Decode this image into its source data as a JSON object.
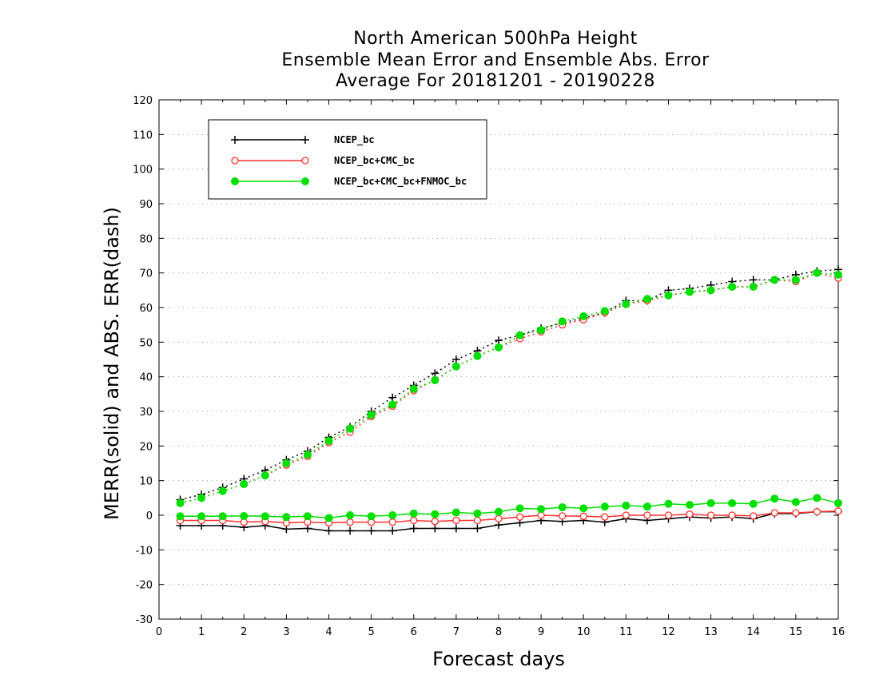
{
  "chart_data": {
    "type": "line",
    "title": [
      "North American 500hPa Height",
      "Ensemble Mean Error and Ensemble Abs. Error",
      "Average For 20181201 - 20190228"
    ],
    "xlabel": "Forecast days",
    "ylabel": "MERR(solid) and ABS. ERR(dash)",
    "xlim": [
      0,
      16
    ],
    "ylim": [
      -30,
      120
    ],
    "xticks": [
      0,
      1,
      2,
      3,
      4,
      5,
      6,
      7,
      8,
      9,
      10,
      11,
      12,
      13,
      14,
      15,
      16
    ],
    "yticks": [
      -30,
      -20,
      -10,
      0,
      10,
      20,
      30,
      40,
      50,
      60,
      70,
      80,
      90,
      100,
      110,
      120
    ],
    "grid": "horizontal dotted",
    "legend_position": "top-left",
    "x": [
      0.5,
      1,
      1.5,
      2,
      2.5,
      3,
      3.5,
      4,
      4.5,
      5,
      5.5,
      6,
      6.5,
      7,
      7.5,
      8,
      8.5,
      9,
      9.5,
      10,
      10.5,
      11,
      11.5,
      12,
      12.5,
      13,
      13.5,
      14,
      14.5,
      15,
      15.5,
      16
    ],
    "series": [
      {
        "name": "NCEP_bc",
        "color": "#000000",
        "marker": "plus",
        "mean_error": [
          -3,
          -3,
          -3,
          -3.5,
          -3,
          -4,
          -3.8,
          -4.5,
          -4.5,
          -4.5,
          -4.5,
          -3.8,
          -3.8,
          -3.8,
          -3.8,
          -2.8,
          -2.2,
          -1.5,
          -1.8,
          -1.5,
          -2,
          -1,
          -1.5,
          -1,
          -0.5,
          -0.8,
          -0.5,
          -1,
          0.5,
          0.5,
          1,
          1
        ],
        "abs_error": [
          4.5,
          6,
          8,
          10.5,
          13,
          16,
          18.5,
          22.5,
          25.5,
          30,
          34,
          37.5,
          41,
          45,
          47.5,
          50.5,
          52,
          54,
          55.5,
          57,
          58.5,
          62,
          62,
          65,
          65.5,
          66.5,
          67.5,
          68,
          68,
          69.5,
          70.5,
          71
        ]
      },
      {
        "name": "NCEP_bc+CMC_bc",
        "color": "#ff3030",
        "marker": "open-circle",
        "mean_error": [
          -1.5,
          -1.5,
          -1.5,
          -2,
          -1.8,
          -2.2,
          -2,
          -2.2,
          -2,
          -2,
          -2,
          -1.5,
          -1.8,
          -1.5,
          -1.5,
          -1,
          -0.5,
          0,
          -0.2,
          -0.3,
          -0.5,
          0,
          0,
          0,
          0.3,
          0,
          0,
          -0.2,
          0.7,
          0.7,
          1,
          1.2
        ],
        "abs_error": [
          3.5,
          5,
          7,
          9,
          11.5,
          14.5,
          17,
          21,
          24,
          28.5,
          31.5,
          36,
          39,
          43,
          46,
          48.5,
          51,
          53,
          55,
          56.5,
          58.5,
          61,
          62,
          63.5,
          64.5,
          65,
          66,
          66,
          68,
          67.5,
          70,
          68.5
        ]
      },
      {
        "name": "NCEP_bc+CMC_bc+FNMOC_bc",
        "color": "#00e000",
        "marker": "filled-circle",
        "mean_error": [
          -0.3,
          -0.3,
          -0.3,
          -0.2,
          -0.3,
          -0.5,
          -0.3,
          -0.8,
          0,
          -0.3,
          0,
          0.5,
          0.3,
          0.8,
          0.5,
          1,
          2,
          1.8,
          2.3,
          2,
          2.5,
          2.8,
          2.5,
          3.3,
          3,
          3.5,
          3.5,
          3.3,
          4.8,
          3.8,
          5,
          3.5
        ],
        "abs_error": [
          3.5,
          5,
          7,
          9,
          11.5,
          15,
          17.5,
          21.5,
          25,
          29,
          32,
          36.5,
          39,
          43,
          46,
          48.5,
          52,
          53.5,
          56,
          57.5,
          59,
          61,
          62.5,
          63.5,
          64.5,
          65,
          66,
          66,
          68,
          68,
          70,
          69.5
        ]
      }
    ]
  }
}
